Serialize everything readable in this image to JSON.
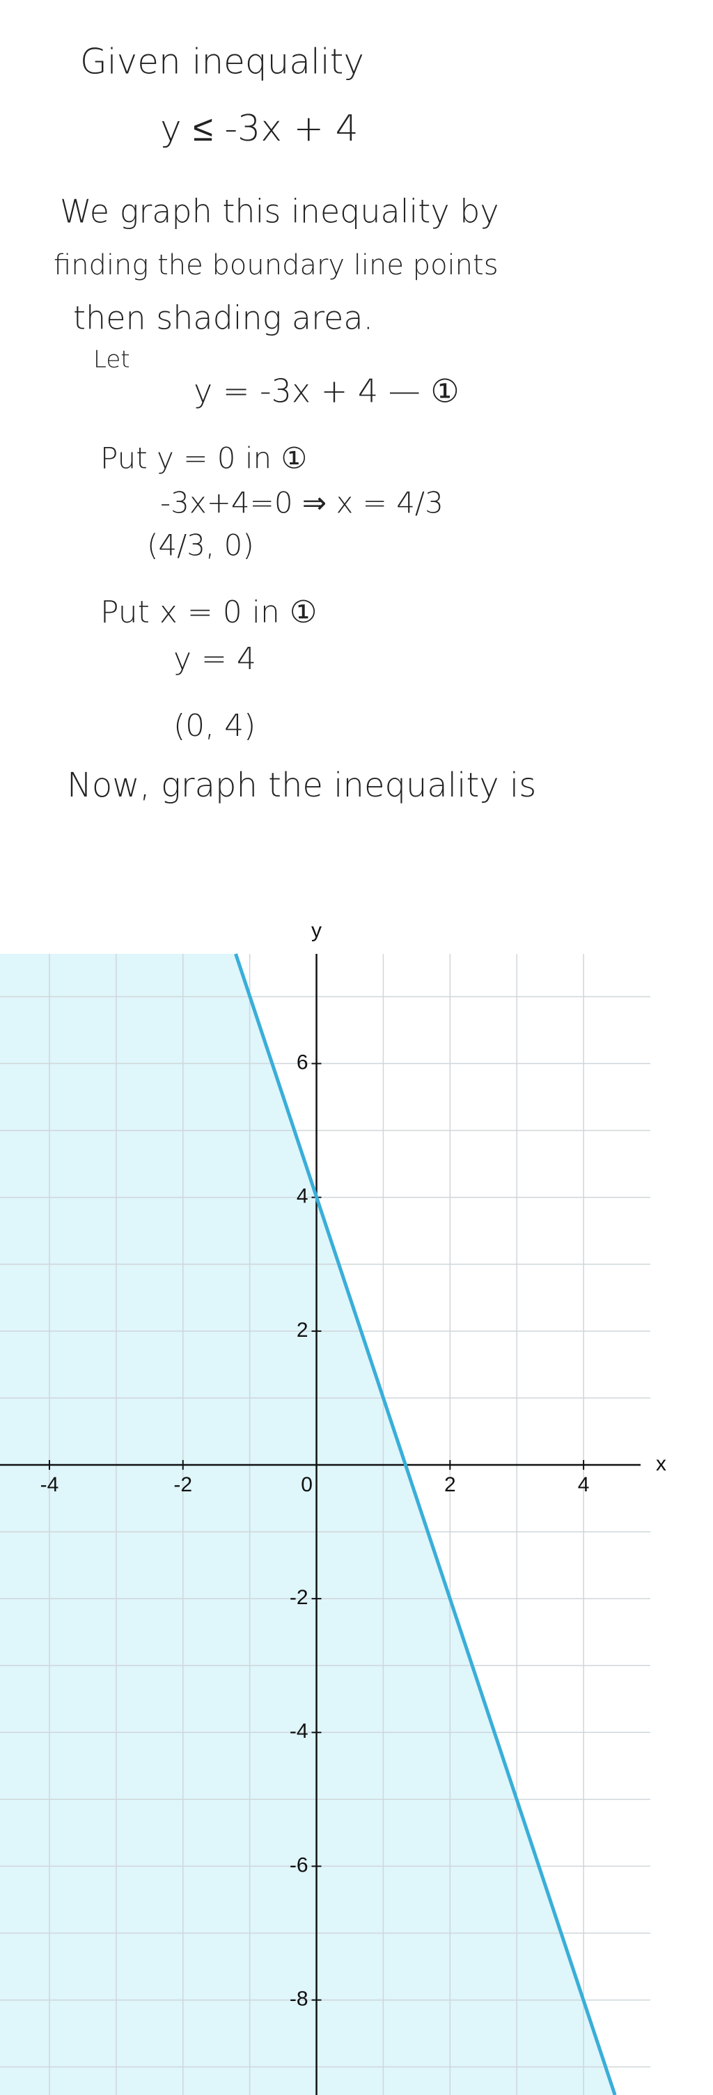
{
  "lines": [
    "Given inequality",
    "y ≤ -3x + 4",
    "We graph this inequality by",
    "finding the boundary line points",
    "then shading area.",
    "Let",
    "y = -3x + 4 — ①",
    "Put y = 0 in ①",
    "-3x+4=0 ⇒ x = 4/3",
    "(4/3, 0)",
    "Put x = 0 in ①",
    "y = 4",
    "(0, 4)",
    "Now, graph the inequality is"
  ],
  "chart_data": {
    "type": "line",
    "x_label": "x",
    "y_label": "y",
    "xlim": [
      -4.74,
      5.0
    ],
    "ylim": [
      -9.42,
      7.64
    ],
    "xticks": [
      -4,
      -2,
      0,
      2,
      4
    ],
    "yticks": [
      -8,
      -6,
      -4,
      -2,
      2,
      4,
      6
    ],
    "xgrid": [
      -4,
      -3,
      -2,
      -1,
      1,
      2,
      3,
      4
    ],
    "ygrid": [
      -9,
      -8,
      -7,
      -6,
      -5,
      -4,
      -3,
      -2,
      -1,
      1,
      2,
      3,
      4,
      5,
      6,
      7
    ],
    "grid": true,
    "shade": "below",
    "series": [
      {
        "color": "#3aaed8",
        "x": [
          -1.21,
          4.47
        ],
        "values": [
          7.64,
          -9.42
        ]
      }
    ]
  }
}
